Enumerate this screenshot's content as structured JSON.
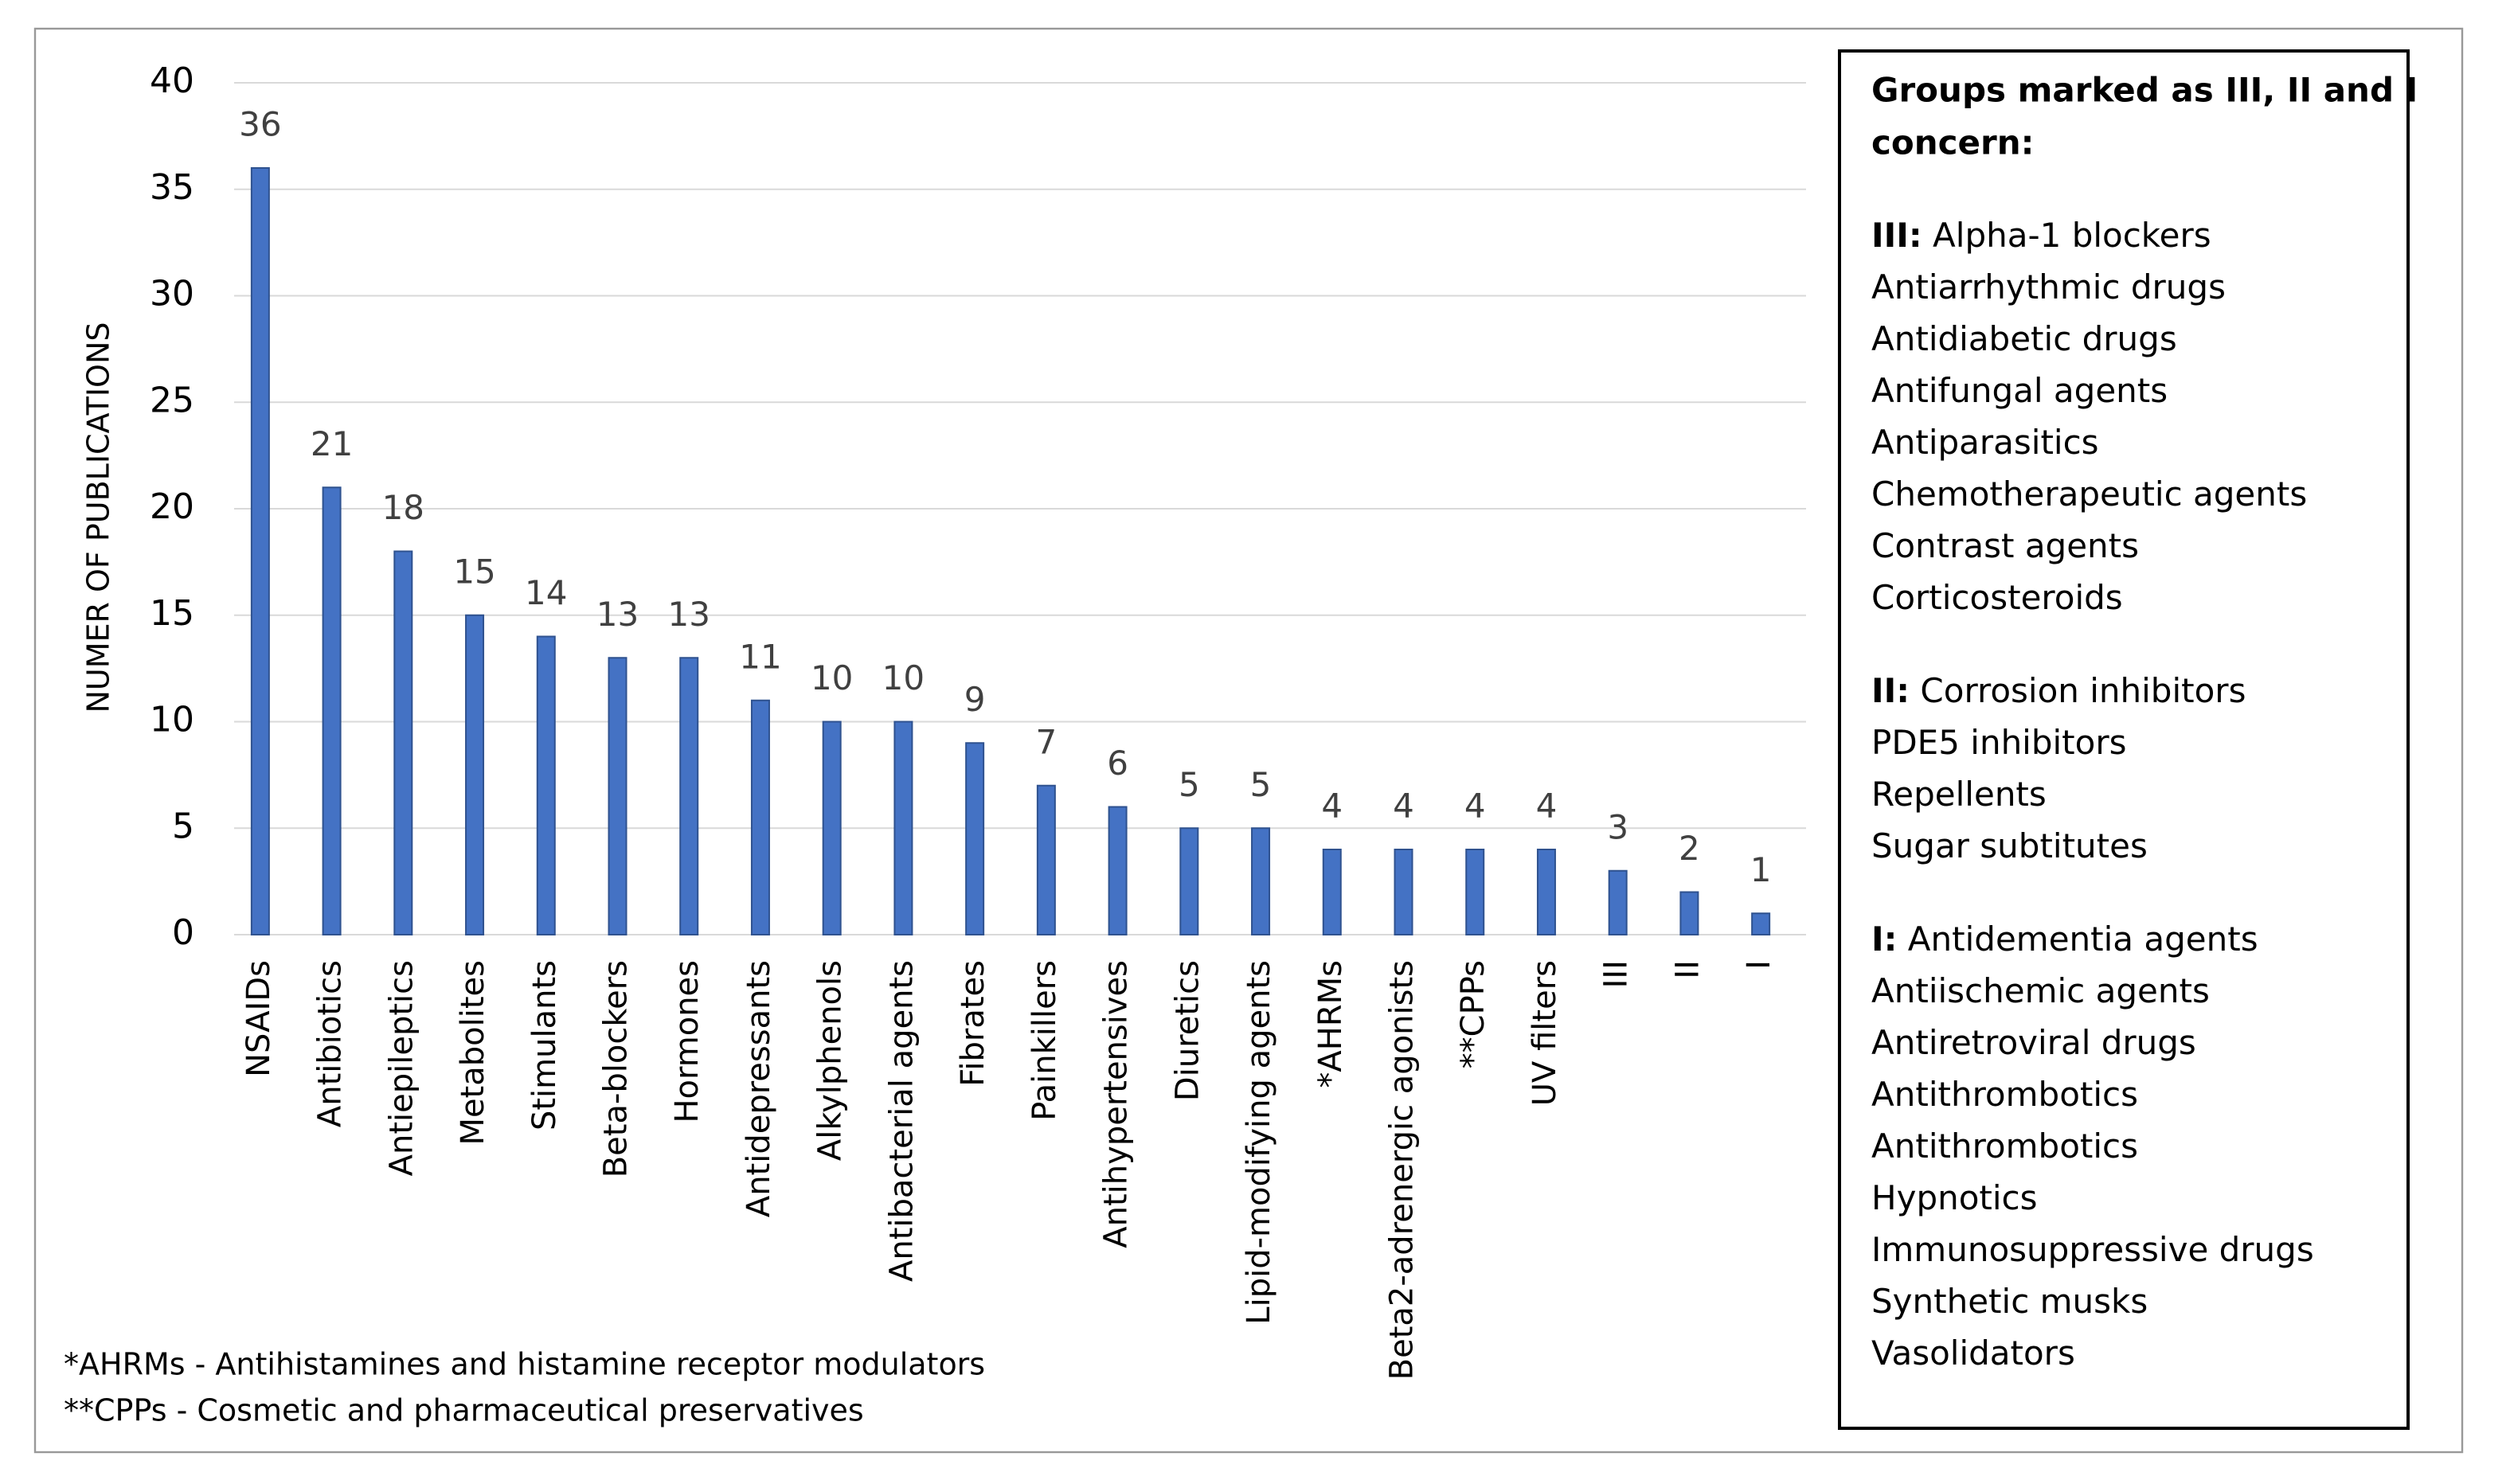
{
  "chart_data": {
    "type": "bar",
    "y_axis_label": "NUMER OF PUBLICATIONS",
    "categories": [
      "NSAIDs",
      "Antibiotics",
      "Antiepileptics",
      "Metabolites",
      "Stimulants",
      "Beta-blockers",
      "Hormones",
      "Antidepressants",
      "Alkylphenols",
      "Antibacterial agents",
      "Fibrates",
      "Painkillers",
      "Antihypertensives",
      "Diuretics",
      "Lipid-modifying agents",
      "*AHRMs",
      "Beta2-adrenergic agonists",
      "**CPPs",
      "UV filters",
      "III",
      "II",
      "I"
    ],
    "values": [
      36,
      21,
      18,
      15,
      14,
      13,
      13,
      11,
      10,
      10,
      9,
      7,
      6,
      5,
      5,
      4,
      4,
      4,
      4,
      3,
      2,
      1
    ],
    "color": "#4472c4",
    "ylim": [
      0,
      40
    ],
    "yticks": [
      0,
      5,
      10,
      15,
      20,
      25,
      30,
      35,
      40
    ],
    "grid": true,
    "footnotes": [
      "*AHRMs - Antihistamines and histamine receptor modulators",
      "**CPPs - Cosmetic and pharmaceutical preservatives"
    ],
    "legend_box": {
      "title_lines": [
        "Groups marked as III, II and I",
        "concern:"
      ],
      "groups": [
        {
          "label": "III:",
          "items": [
            "Alpha-1 blockers",
            "Antiarrhythmic drugs",
            "Antidiabetic drugs",
            "Antifungal agents",
            "Antiparasitics",
            "Chemotherapeutic agents",
            "Contrast agents",
            "Corticosteroids"
          ]
        },
        {
          "label": "II:",
          "items": [
            "Corrosion inhibitors",
            "PDE5 inhibitors",
            "Repellents",
            "Sugar subtitutes"
          ]
        },
        {
          "label": "I:",
          "items": [
            "Antidementia agents",
            "Antiischemic agents",
            "Antiretroviral drugs",
            "Antithrombotics",
            "Antithrombotics",
            "Hypnotics",
            "Immunosuppressive drugs",
            "Synthetic musks",
            "Vasolidators"
          ]
        }
      ]
    }
  }
}
